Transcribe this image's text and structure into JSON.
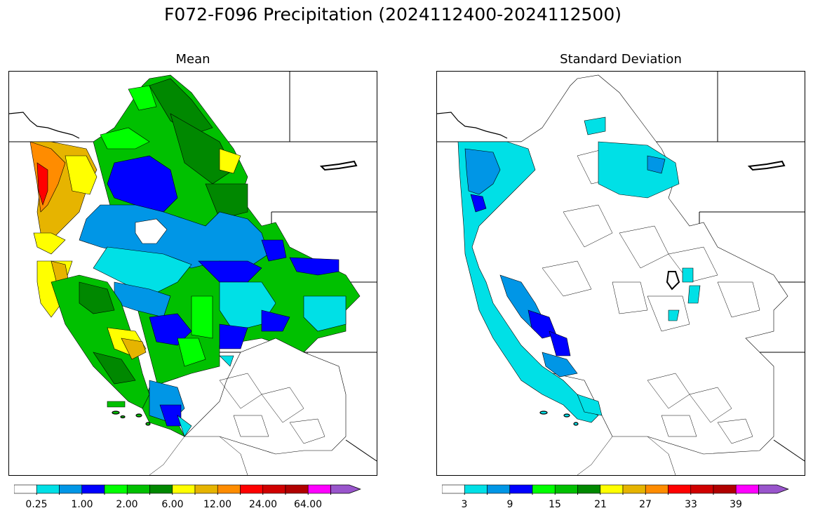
{
  "title": "F072-F096 Precipitation (2024112400-2024112500)",
  "panels": [
    {
      "id": "mean",
      "title": "Mean",
      "colorbar": {
        "colors": [
          "#ffffff",
          "#00e0e6",
          "#0096e6",
          "#0000ff",
          "#00ff00",
          "#00c000",
          "#008800",
          "#ffff00",
          "#e6b400",
          "#ff8c00",
          "#ff0000",
          "#d00000",
          "#b00000",
          "#ff00ff",
          "#9955cc"
        ],
        "labels": [
          "0.25",
          "1.00",
          "2.00",
          "6.00",
          "12.00",
          "24.00",
          "64.00"
        ]
      }
    },
    {
      "id": "stddev",
      "title": "Standard Deviation",
      "colorbar": {
        "colors": [
          "#ffffff",
          "#00e0e6",
          "#0096e6",
          "#0000ff",
          "#00ff00",
          "#00c000",
          "#008800",
          "#ffff00",
          "#e6b400",
          "#ff8c00",
          "#ff0000",
          "#d00000",
          "#b00000",
          "#ff00ff",
          "#9955cc"
        ],
        "labels": [
          "3",
          "9",
          "15",
          "21",
          "27",
          "33",
          "39"
        ]
      }
    }
  ]
}
